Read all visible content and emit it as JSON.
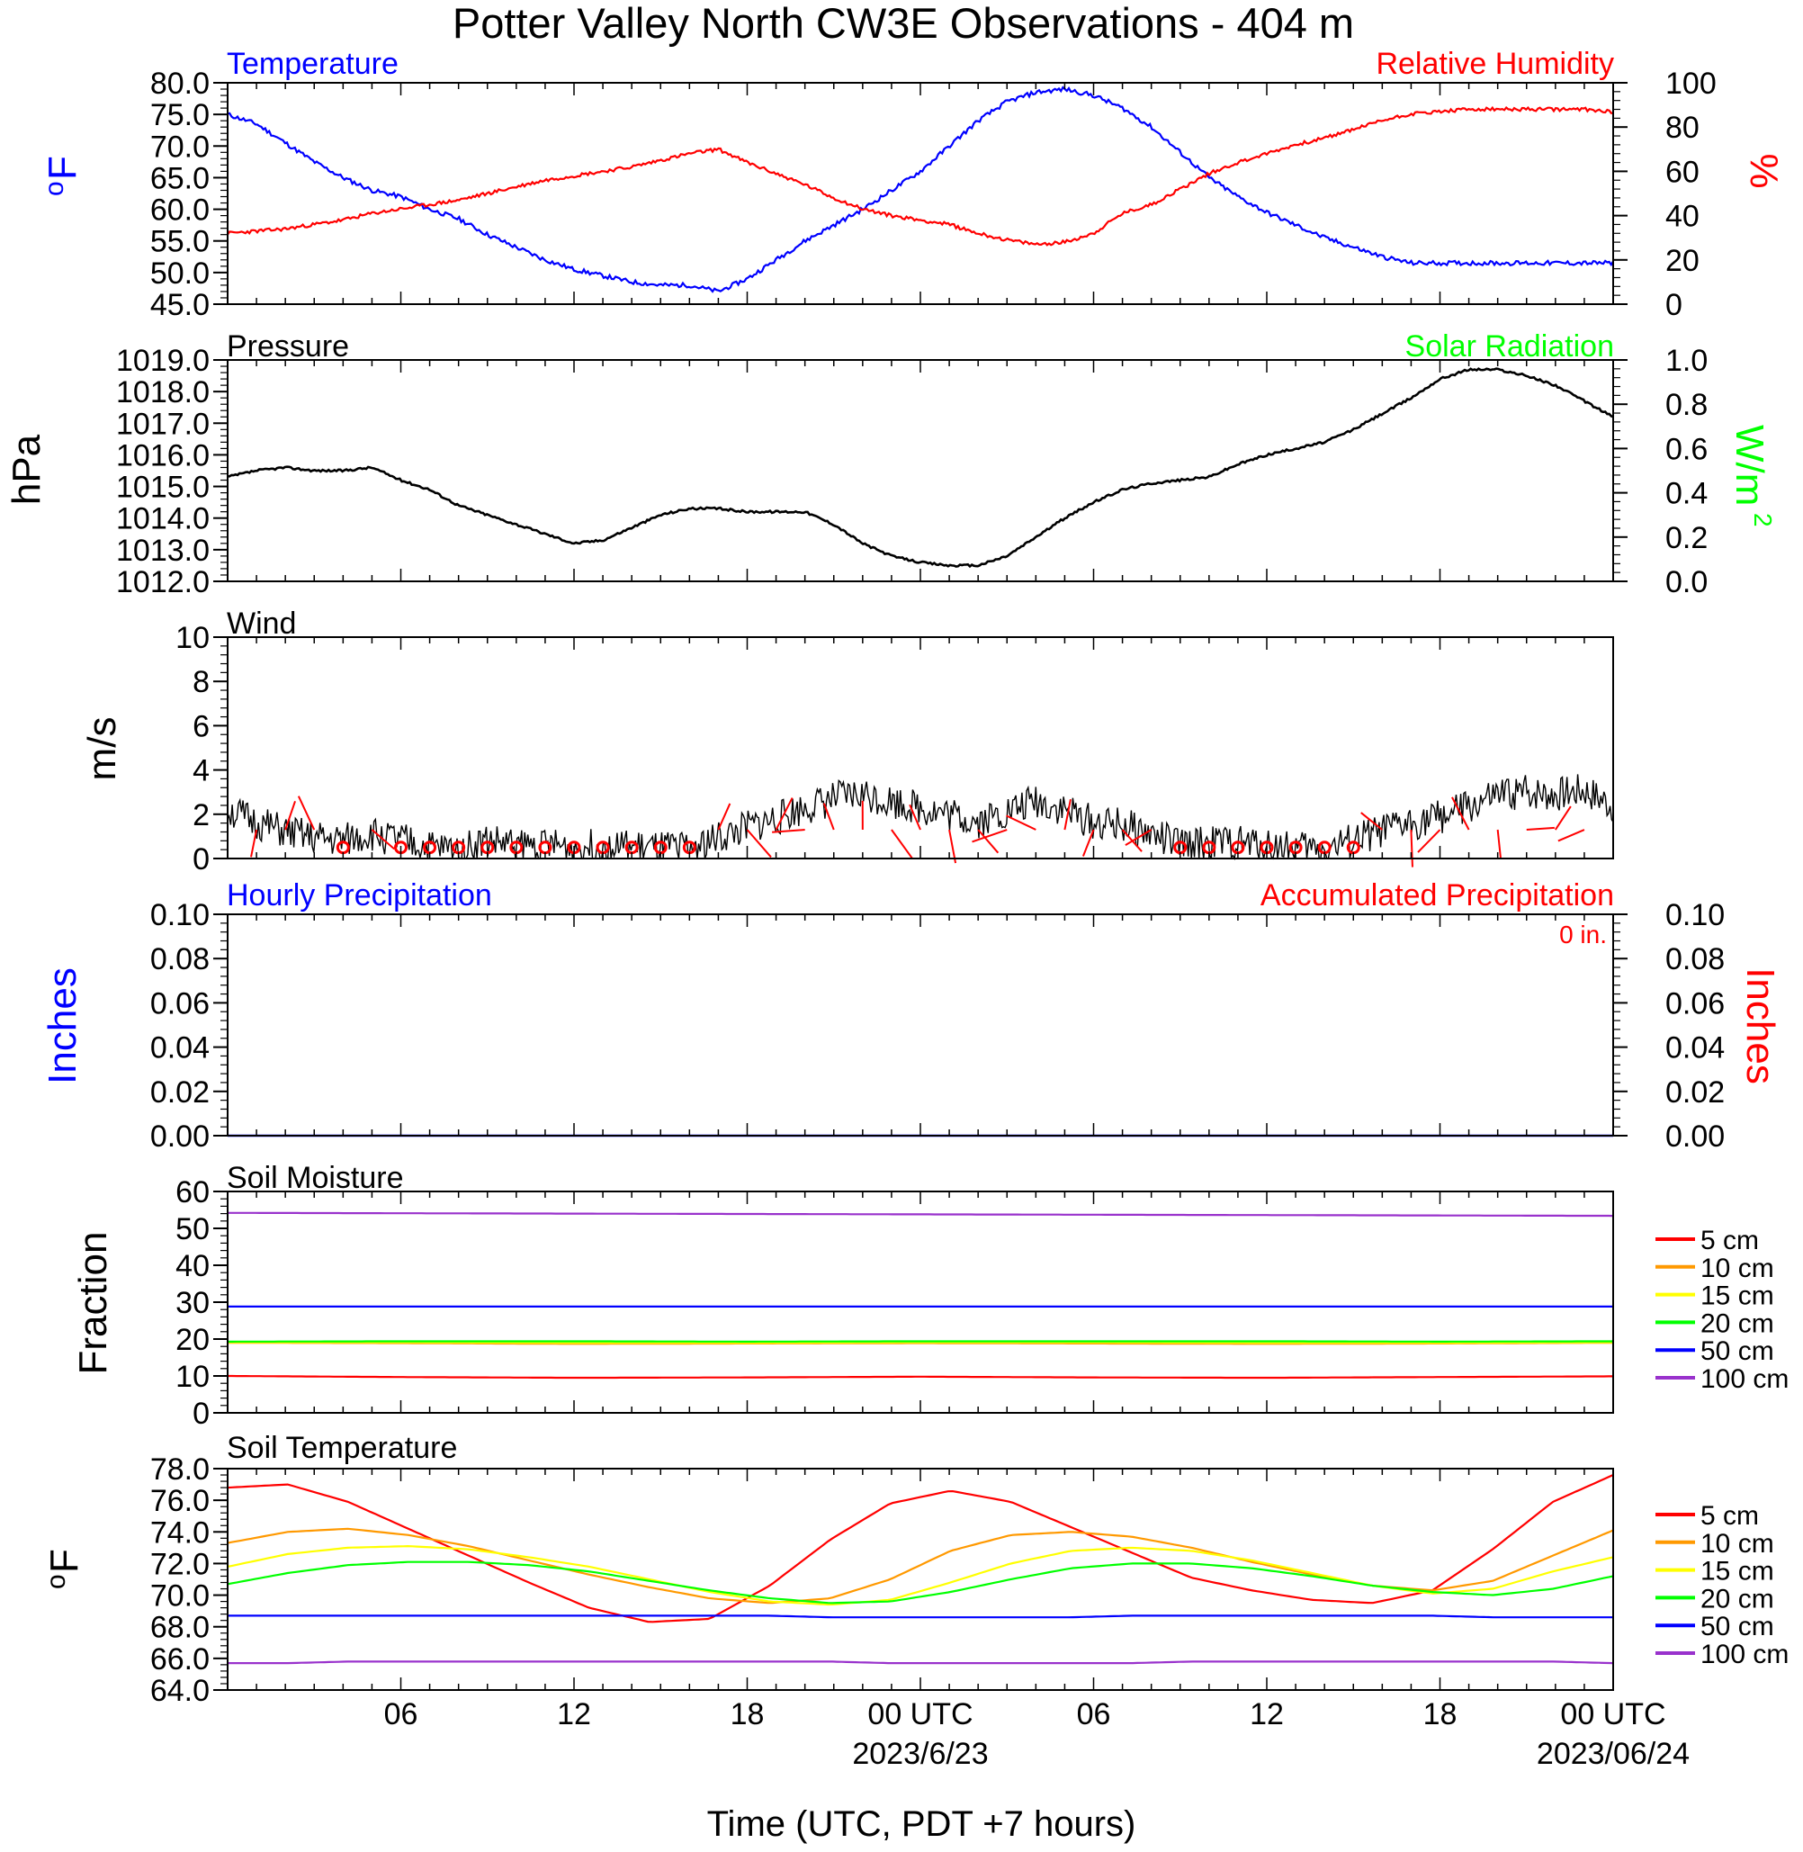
{
  "title": "Potter Valley North CW3E Observations - 404 m",
  "x_axis": {
    "label": "Time (UTC, PDT +7 hours)",
    "tick_labels": [
      "06",
      "12",
      "18",
      "00 UTC",
      "06",
      "12",
      "18",
      "00 UTC"
    ],
    "date_labels": [
      "2023/6/23",
      "2023/06/24"
    ]
  },
  "colors": {
    "temperature": "#0000ff",
    "humidity": "#ff0000",
    "pressure": "#000000",
    "solar": "#00ff00",
    "wind": "#000000",
    "barbs": "#ff0000",
    "soil": {
      "5 cm": "#ff0000",
      "10 cm": "#ff9900",
      "15 cm": "#ffff00",
      "20 cm": "#00ff00",
      "50 cm": "#0000ff",
      "100 cm": "#9932cc"
    }
  },
  "panels": {
    "temperature": {
      "left_title": "Temperature",
      "right_title": "Relative Humidity",
      "left_unit_main": "o",
      "left_unit_tail": "F",
      "right_unit": "%",
      "left_ticks": [
        "80.0",
        "75.0",
        "70.0",
        "65.0",
        "60.0",
        "55.0",
        "50.0",
        "45.0"
      ],
      "right_ticks": [
        "100",
        "80",
        "60",
        "40",
        "20",
        "0"
      ]
    },
    "pressure": {
      "left_title": "Pressure",
      "right_title": "Solar Radiation",
      "left_unit": "hPa",
      "right_unit_main": "W/m",
      "right_unit_sup": "2",
      "left_ticks": [
        "1019.0",
        "1018.0",
        "1017.0",
        "1016.0",
        "1015.0",
        "1014.0",
        "1013.0",
        "1012.0"
      ],
      "right_ticks": [
        "1.0",
        "0.8",
        "0.6",
        "0.4",
        "0.2",
        "0.0"
      ]
    },
    "wind": {
      "title": "Wind",
      "unit": "m/s",
      "ticks": [
        "10",
        "8",
        "6",
        "4",
        "2",
        "0"
      ]
    },
    "precip": {
      "left_title": "Hourly Precipitation",
      "right_title": "Accumulated Precipitation",
      "total": "0 in.",
      "left_unit": "Inches",
      "right_unit": "Inches",
      "left_ticks": [
        "0.10",
        "0.08",
        "0.06",
        "0.04",
        "0.02",
        "0.00"
      ],
      "right_ticks": [
        "0.10",
        "0.08",
        "0.06",
        "0.04",
        "0.02",
        "0.00"
      ]
    },
    "soil_moisture": {
      "title": "Soil Moisture",
      "unit": "Fraction",
      "ticks": [
        "60",
        "50",
        "40",
        "30",
        "20",
        "10",
        "0"
      ],
      "legend": [
        "5 cm",
        "10 cm",
        "15 cm",
        "20 cm",
        "50 cm",
        "100 cm"
      ]
    },
    "soil_temperature": {
      "title": "Soil Temperature",
      "unit_main": "o",
      "unit_tail": "F",
      "ticks": [
        "78.0",
        "76.0",
        "74.0",
        "72.0",
        "70.0",
        "68.0",
        "66.0",
        "64.0"
      ],
      "legend": [
        "5 cm",
        "10 cm",
        "15 cm",
        "20 cm",
        "50 cm",
        "100 cm"
      ]
    }
  },
  "chart_data": [
    {
      "type": "line",
      "panel": "temperature",
      "x_hours_since_start": [
        0,
        1,
        2,
        3,
        4,
        5,
        6,
        7,
        8,
        9,
        10,
        11,
        12,
        13,
        14,
        15,
        16,
        17,
        18,
        19,
        20,
        21,
        22,
        23,
        24,
        25,
        26,
        27,
        28,
        29,
        30,
        31,
        32,
        33,
        34,
        35,
        36,
        37,
        38,
        39,
        40,
        41,
        42,
        43,
        44,
        45,
        46,
        47,
        48
      ],
      "series": [
        {
          "name": "Temperature",
          "axis": "left",
          "ylim": [
            45,
            80
          ],
          "values": [
            75,
            73.5,
            70.5,
            67.5,
            65,
            63,
            62,
            60,
            58.5,
            56,
            54,
            52,
            50.5,
            49.5,
            48.5,
            48,
            48,
            47,
            49,
            52,
            55,
            57.5,
            60,
            63,
            66,
            70,
            74,
            77,
            78.5,
            79,
            78,
            76,
            73,
            69,
            65,
            62,
            59.5,
            57.5,
            55.5,
            54,
            52.5,
            51.5,
            51.5,
            51.5,
            51.5,
            51.5,
            51.5,
            51.5,
            51.5
          ]
        },
        {
          "name": "Relative Humidity",
          "axis": "right",
          "ylim": [
            0,
            100
          ],
          "values": [
            32,
            33,
            34,
            36,
            38,
            41,
            43,
            45,
            47,
            50,
            53,
            56,
            58,
            60,
            62,
            65,
            68,
            70,
            64,
            59,
            54,
            48,
            43,
            40,
            38,
            36,
            32,
            29,
            27,
            28,
            32,
            41,
            45,
            52,
            59,
            64,
            68,
            72,
            75,
            79,
            83,
            86,
            87,
            88,
            88,
            88,
            88,
            88,
            87
          ]
        }
      ]
    },
    {
      "type": "line",
      "panel": "pressure",
      "ylim": [
        1012,
        1019
      ],
      "series": [
        {
          "name": "Pressure",
          "axis": "left",
          "values": [
            1015.3,
            1015.5,
            1015.6,
            1015.5,
            1015.5,
            1015.6,
            1015.2,
            1014.9,
            1014.4,
            1014.1,
            1013.8,
            1013.5,
            1013.2,
            1013.3,
            1013.7,
            1014.1,
            1014.3,
            1014.3,
            1014.2,
            1014.2,
            1014.2,
            1013.8,
            1013.2,
            1012.8,
            1012.6,
            1012.5,
            1012.5,
            1012.8,
            1013.4,
            1014.0,
            1014.5,
            1014.9,
            1015.1,
            1015.2,
            1015.3,
            1015.7,
            1016.0,
            1016.2,
            1016.4,
            1016.8,
            1017.3,
            1017.8,
            1018.4,
            1018.7,
            1018.7,
            1018.5,
            1018.2,
            1017.7,
            1017.2
          ]
        }
      ]
    },
    {
      "type": "line",
      "panel": "wind",
      "ylim": [
        0,
        10
      ],
      "series": [
        {
          "name": "Wind",
          "values": [
            2.2,
            1.6,
            1.2,
            0.9,
            0.8,
            1.1,
            0.8,
            0.5,
            0.4,
            0.8,
            0.6,
            0.6,
            0.5,
            0.6,
            0.5,
            0.4,
            0.5,
            0.9,
            1.4,
            1.8,
            2.3,
            2.7,
            2.9,
            2.6,
            2.3,
            2.0,
            1.7,
            2.1,
            2.6,
            2.2,
            1.6,
            1.5,
            1.1,
            0.6,
            0.7,
            0.7,
            0.6,
            0.5,
            0.4,
            0.8,
            1.2,
            1.6,
            1.9,
            2.3,
            2.8,
            3.0,
            2.9,
            3.1,
            2.4
          ]
        }
      ]
    },
    {
      "type": "line",
      "panel": "precip",
      "ylim": [
        0,
        0.1
      ],
      "series": [
        {
          "name": "Hourly Precipitation",
          "axis": "left",
          "values": [
            0,
            0
          ]
        },
        {
          "name": "Accumulated Precipitation",
          "axis": "right",
          "values": [
            0,
            0
          ]
        }
      ]
    },
    {
      "type": "line",
      "panel": "soil_moisture",
      "ylim": [
        0,
        60
      ],
      "series": [
        {
          "name": "5 cm",
          "values": [
            10,
            9.7,
            9.5,
            9.6,
            9.8,
            9.6,
            9.5,
            9.7,
            9.9
          ]
        },
        {
          "name": "10 cm",
          "values": [
            19,
            18.9,
            18.7,
            18.8,
            18.9,
            18.8,
            18.7,
            18.8,
            19
          ]
        },
        {
          "name": "15 cm",
          "values": [
            19.1,
            19.1,
            19,
            19,
            19.1,
            19.1,
            19,
            19,
            19.1
          ]
        },
        {
          "name": "20 cm",
          "values": [
            19.3,
            19.4,
            19.4,
            19.3,
            19.4,
            19.4,
            19.4,
            19.3,
            19.4
          ]
        },
        {
          "name": "50 cm",
          "values": [
            28.8,
            28.8,
            28.8,
            28.8,
            28.8,
            28.8,
            28.8,
            28.8,
            28.8
          ]
        },
        {
          "name": "100 cm",
          "values": [
            54.2,
            54.1,
            54,
            53.9,
            53.8,
            53.7,
            53.6,
            53.5,
            53.4
          ]
        }
      ]
    },
    {
      "type": "line",
      "panel": "soil_temperature",
      "ylim": [
        64,
        78
      ],
      "series": [
        {
          "name": "5 cm",
          "values": [
            76.8,
            77.0,
            75.9,
            74.2,
            72.5,
            70.8,
            69.2,
            68.3,
            68.5,
            70.6,
            73.5,
            75.8,
            76.6,
            75.9,
            74.3,
            72.7,
            71.1,
            70.3,
            69.7,
            69.5,
            70.3,
            72.9,
            75.9,
            77.6
          ]
        },
        {
          "name": "10 cm",
          "values": [
            73.3,
            74.0,
            74.2,
            73.8,
            73.1,
            72.2,
            71.3,
            70.5,
            69.8,
            69.5,
            69.8,
            71.0,
            72.8,
            73.8,
            74.0,
            73.7,
            73.0,
            72.1,
            71.3,
            70.6,
            70.3,
            70.9,
            72.5,
            74.1
          ]
        },
        {
          "name": "15 cm",
          "values": [
            71.8,
            72.6,
            73.0,
            73.1,
            72.9,
            72.4,
            71.8,
            71.0,
            70.2,
            69.6,
            69.4,
            69.7,
            70.8,
            72.0,
            72.8,
            73.0,
            72.8,
            72.2,
            71.4,
            70.6,
            70.1,
            70.4,
            71.5,
            72.4
          ]
        },
        {
          "name": "20 cm",
          "values": [
            70.7,
            71.4,
            71.9,
            72.1,
            72.1,
            71.9,
            71.5,
            70.9,
            70.3,
            69.8,
            69.5,
            69.6,
            70.2,
            71.0,
            71.7,
            72.0,
            72.0,
            71.7,
            71.2,
            70.6,
            70.2,
            70.0,
            70.4,
            71.2
          ]
        },
        {
          "name": "50 cm",
          "values": [
            68.7,
            68.7,
            68.7,
            68.7,
            68.7,
            68.7,
            68.7,
            68.7,
            68.7,
            68.7,
            68.6,
            68.6,
            68.6,
            68.6,
            68.6,
            68.7,
            68.7,
            68.7,
            68.7,
            68.7,
            68.7,
            68.6,
            68.6,
            68.6
          ]
        },
        {
          "name": "100 cm",
          "values": [
            65.7,
            65.7,
            65.8,
            65.8,
            65.8,
            65.8,
            65.8,
            65.8,
            65.8,
            65.8,
            65.8,
            65.7,
            65.7,
            65.7,
            65.7,
            65.7,
            65.8,
            65.8,
            65.8,
            65.8,
            65.8,
            65.8,
            65.8,
            65.7
          ]
        }
      ]
    }
  ]
}
